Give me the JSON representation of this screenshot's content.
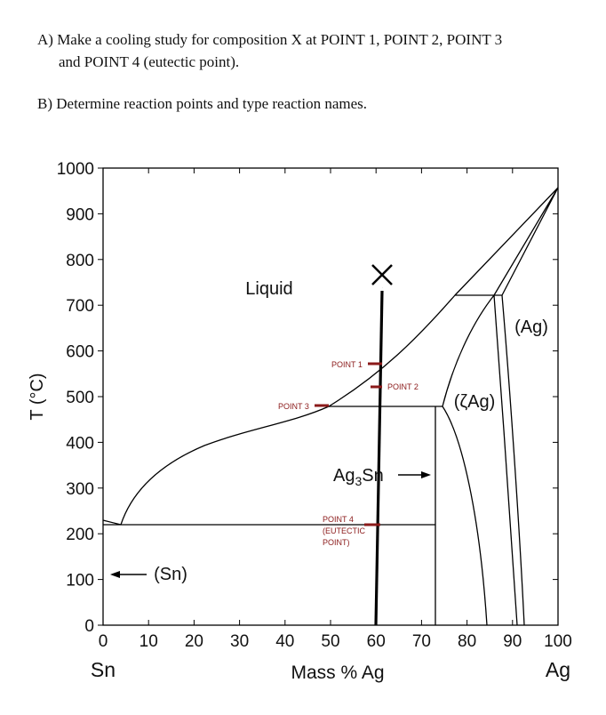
{
  "questions": {
    "a_line1": "A) Make a cooling study for composition X at POINT 1, POINT 2, POINT 3",
    "a_line2": "and POINT 4 (eutectic point).",
    "b": "B) Determine reaction points and type reaction names."
  },
  "diagram": {
    "y_label": "T (°C)",
    "x_label": "Mass % Ag",
    "x_ticks": [
      "0",
      "10",
      "20",
      "30",
      "40",
      "50",
      "60",
      "70",
      "80",
      "90",
      "100"
    ],
    "y_ticks": [
      "0",
      "100",
      "200",
      "300",
      "400",
      "500",
      "600",
      "700",
      "800",
      "900",
      "1000"
    ],
    "left_end": "Sn",
    "right_end": "Ag",
    "regions": {
      "liquid": "Liquid",
      "ag": "(Ag)",
      "zeta": "(ζAg)",
      "sn": "(Sn)",
      "ag3sn": [
        "Ag",
        "3",
        "Sn"
      ]
    },
    "composition": "X",
    "points": {
      "p1": "POINT 1",
      "p2": "POINT 2",
      "p3": "POINT 3",
      "p4": [
        "POINT 4",
        "(EUTECTIC",
        "POINT)"
      ]
    }
  }
}
